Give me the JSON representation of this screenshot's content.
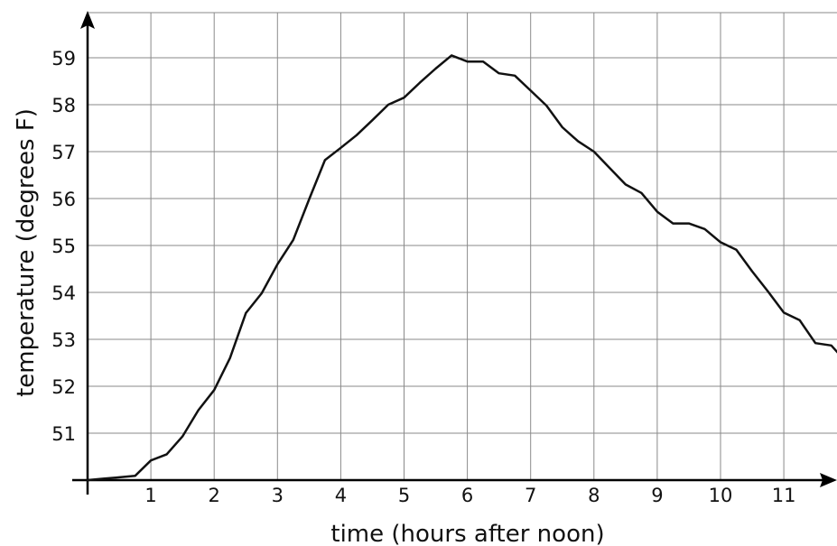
{
  "chart_data": {
    "type": "line",
    "title": "",
    "xlabel": "time (hours after noon)",
    "ylabel": "temperature (degrees F)",
    "xlim": [
      0,
      11.85
    ],
    "ylim": [
      50,
      59.95
    ],
    "x_ticks": [
      1,
      2,
      3,
      4,
      5,
      6,
      7,
      8,
      9,
      10,
      11
    ],
    "y_ticks": [
      51,
      52,
      53,
      54,
      55,
      56,
      57,
      58,
      59
    ],
    "grid": true,
    "legend": "none",
    "line_color": "#111111",
    "series": [
      {
        "x": [
          0,
          0.25,
          0.5,
          0.75,
          1.0,
          1.25,
          1.5,
          1.75,
          2.0,
          2.25,
          2.5,
          2.75,
          3.0,
          3.25,
          3.5,
          3.75,
          4.0,
          4.25,
          4.5,
          4.75,
          5.0,
          5.25,
          5.5,
          5.75,
          6.0,
          6.25,
          6.5,
          6.75,
          7.0,
          7.25,
          7.5,
          7.75,
          8.0,
          8.25,
          8.5,
          8.75,
          9.0,
          9.25,
          9.5,
          9.75,
          10.0,
          10.25,
          10.5,
          10.75,
          11.0,
          11.25,
          11.5,
          11.75,
          11.85
        ],
        "y": [
          50.0,
          50.03,
          50.06,
          50.09,
          50.42,
          50.55,
          50.93,
          51.49,
          51.92,
          52.6,
          53.56,
          53.98,
          54.6,
          55.12,
          55.98,
          56.82,
          57.08,
          57.35,
          57.67,
          58.0,
          58.15,
          58.47,
          58.77,
          59.05,
          58.92,
          58.92,
          58.67,
          58.62,
          58.3,
          57.98,
          57.52,
          57.22,
          57.0,
          56.65,
          56.3,
          56.12,
          55.72,
          55.47,
          55.47,
          55.35,
          55.07,
          54.91,
          54.45,
          54.02,
          53.57,
          53.41,
          52.92,
          52.87,
          52.72
        ]
      }
    ]
  }
}
